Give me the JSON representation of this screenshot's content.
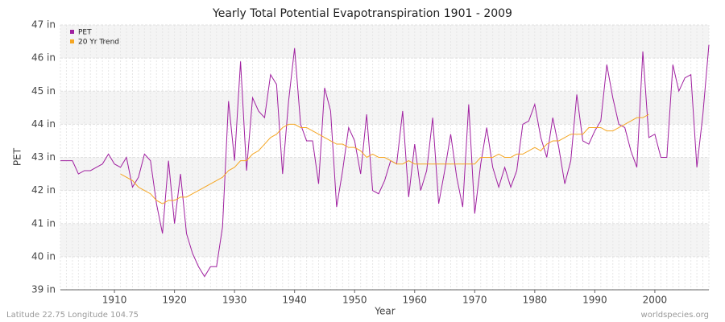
{
  "chart_data": {
    "type": "line",
    "title": "Yearly Total Potential Evapotranspiration 1901 - 2009",
    "x_label": "Year",
    "y_label": "PET",
    "footer_left": "Latitude 22.75 Longitude 104.75",
    "footer_right": "worldspecies.org",
    "legend_position": "top-left",
    "grid": true,
    "x": [
      1901,
      1902,
      1903,
      1904,
      1905,
      1906,
      1907,
      1908,
      1909,
      1910,
      1911,
      1912,
      1913,
      1914,
      1915,
      1916,
      1917,
      1918,
      1919,
      1920,
      1921,
      1922,
      1923,
      1924,
      1925,
      1926,
      1927,
      1928,
      1929,
      1930,
      1931,
      1932,
      1933,
      1934,
      1935,
      1936,
      1937,
      1938,
      1939,
      1940,
      1941,
      1942,
      1943,
      1944,
      1945,
      1946,
      1947,
      1948,
      1949,
      1950,
      1951,
      1952,
      1953,
      1954,
      1955,
      1956,
      1957,
      1958,
      1959,
      1960,
      1961,
      1962,
      1963,
      1964,
      1965,
      1966,
      1967,
      1968,
      1969,
      1970,
      1971,
      1972,
      1973,
      1974,
      1975,
      1976,
      1977,
      1978,
      1979,
      1980,
      1981,
      1982,
      1983,
      1984,
      1985,
      1986,
      1987,
      1988,
      1989,
      1990,
      1991,
      1992,
      1993,
      1994,
      1995,
      1996,
      1997,
      1998,
      1999,
      2000,
      2001,
      2002,
      2003,
      2004,
      2005,
      2006,
      2007,
      2008,
      2009
    ],
    "series": [
      {
        "name": "PET",
        "color": "#a020a0",
        "values": [
          42.9,
          42.9,
          42.9,
          42.5,
          42.6,
          42.6,
          42.7,
          42.8,
          43.1,
          42.8,
          42.7,
          43.0,
          42.1,
          42.4,
          43.1,
          42.9,
          41.6,
          40.7,
          42.9,
          41.0,
          42.5,
          40.7,
          40.1,
          39.7,
          39.4,
          39.7,
          39.7,
          40.9,
          44.7,
          42.9,
          45.9,
          42.6,
          44.8,
          44.4,
          44.2,
          45.5,
          45.2,
          42.5,
          44.7,
          46.3,
          44.0,
          43.5,
          43.5,
          42.2,
          45.1,
          44.4,
          41.5,
          42.6,
          43.9,
          43.5,
          42.5,
          44.3,
          42.0,
          41.9,
          42.3,
          42.9,
          42.8,
          44.4,
          41.8,
          43.4,
          42.0,
          42.6,
          44.2,
          41.6,
          42.6,
          43.7,
          42.4,
          41.5,
          44.6,
          41.3,
          42.8,
          43.9,
          42.7,
          42.1,
          42.7,
          42.1,
          42.6,
          44.0,
          44.1,
          44.6,
          43.6,
          43.0,
          44.2,
          43.3,
          42.2,
          42.9,
          44.9,
          43.5,
          43.4,
          43.8,
          44.1,
          45.8,
          44.8,
          44.0,
          43.9,
          43.2,
          42.7,
          46.2,
          43.6,
          43.7,
          43.0,
          43.0,
          45.8,
          45.0,
          45.4,
          45.5,
          42.7,
          44.3,
          46.4
        ]
      },
      {
        "name": "20 Yr Trend",
        "color": "#f5a623",
        "values": [
          null,
          null,
          null,
          null,
          null,
          null,
          null,
          null,
          null,
          null,
          42.5,
          42.4,
          42.3,
          42.1,
          42.0,
          41.9,
          41.7,
          41.6,
          41.7,
          41.7,
          41.8,
          41.8,
          41.9,
          42.0,
          42.1,
          42.2,
          42.3,
          42.4,
          42.6,
          42.7,
          42.9,
          42.9,
          43.1,
          43.2,
          43.4,
          43.6,
          43.7,
          43.9,
          44.0,
          44.0,
          43.9,
          43.9,
          43.8,
          43.7,
          43.6,
          43.5,
          43.4,
          43.4,
          43.3,
          43.3,
          43.2,
          43.0,
          43.1,
          43.0,
          43.0,
          42.9,
          42.8,
          42.8,
          42.9,
          42.8,
          42.8,
          42.8,
          42.8,
          42.8,
          42.8,
          42.8,
          42.8,
          42.8,
          42.8,
          42.8,
          43.0,
          43.0,
          43.0,
          43.1,
          43.0,
          43.0,
          43.1,
          43.1,
          43.2,
          43.3,
          43.2,
          43.4,
          43.5,
          43.5,
          43.6,
          43.7,
          43.7,
          43.7,
          43.9,
          43.9,
          43.9,
          43.8,
          43.8,
          43.9,
          44.0,
          44.1,
          44.2,
          44.2,
          44.3,
          null,
          null,
          null,
          null,
          null,
          null,
          null,
          null,
          null,
          null
        ]
      }
    ],
    "xlim": [
      1901,
      2009
    ],
    "xticks": [
      1910,
      1920,
      1930,
      1940,
      1950,
      1960,
      1970,
      1980,
      1990,
      2000
    ],
    "ylim": [
      39,
      47
    ],
    "yticks": [
      {
        "value": 39,
        "label": "39 in"
      },
      {
        "value": 40,
        "label": "40 in"
      },
      {
        "value": 41,
        "label": "41 in"
      },
      {
        "value": 42,
        "label": "42 in"
      },
      {
        "value": 43,
        "label": "43 in"
      },
      {
        "value": 44,
        "label": "44 in"
      },
      {
        "value": 45,
        "label": "45 in"
      },
      {
        "value": 46,
        "label": "46 in"
      },
      {
        "value": 47,
        "label": "47 in"
      }
    ]
  }
}
